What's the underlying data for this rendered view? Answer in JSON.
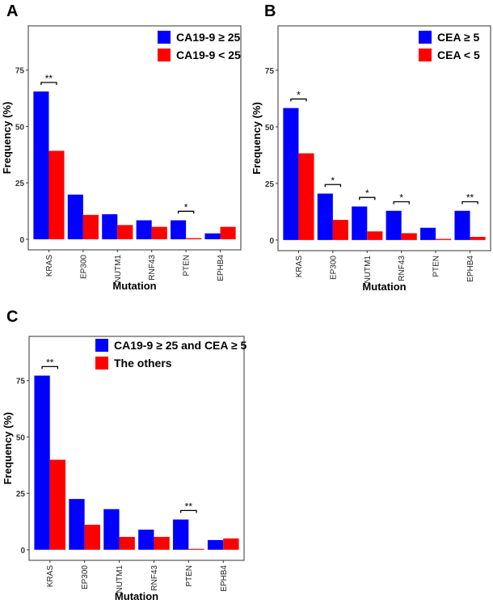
{
  "chart_data": [
    {
      "panel_label": "A",
      "type": "bar",
      "xlabel": "Mutation",
      "ylabel": "Frequency (%)",
      "ylim": [
        -4.7,
        94.6
      ],
      "yticks": [
        0,
        25,
        50,
        75
      ],
      "grid": false,
      "legend_position": "top-right",
      "categories": [
        "KRAS",
        "EP300",
        "NUTM1",
        "RNF43",
        "PTEN",
        "EPHB4"
      ],
      "series": [
        {
          "name": "CA19-9 ≥ 25",
          "color": "#0000FF",
          "values": [
            65.5,
            19.8,
            11.1,
            8.4,
            8.4,
            2.6
          ]
        },
        {
          "name": "CA19-9 < 25",
          "color": "#FF0000",
          "values": [
            39.2,
            10.8,
            6.3,
            5.5,
            0.5,
            5.5
          ]
        }
      ],
      "significance": [
        {
          "category": "KRAS",
          "label": "**"
        },
        {
          "category": "PTEN",
          "label": "*"
        }
      ]
    },
    {
      "panel_label": "B",
      "type": "bar",
      "xlabel": "Mutation",
      "ylabel": "Frequency (%)",
      "ylim": [
        -4.7,
        94.6
      ],
      "yticks": [
        0,
        25,
        50,
        75
      ],
      "grid": false,
      "legend_position": "top-right",
      "categories": [
        "KRAS",
        "EP300",
        "NUTM1",
        "RNF43",
        "PTEN",
        "EPHB4"
      ],
      "series": [
        {
          "name": "CEA ≥ 5",
          "color": "#0000FF",
          "values": [
            58.3,
            20.5,
            14.8,
            12.9,
            5.4,
            12.9
          ]
        },
        {
          "name": "CEA < 5",
          "color": "#FF0000",
          "values": [
            38.3,
            8.9,
            3.8,
            3.0,
            0.5,
            1.4
          ]
        }
      ],
      "significance": [
        {
          "category": "KRAS",
          "label": "*"
        },
        {
          "category": "EP300",
          "label": "*"
        },
        {
          "category": "NUTM1",
          "label": "*"
        },
        {
          "category": "RNF43",
          "label": "*"
        },
        {
          "category": "EPHB4",
          "label": "**"
        }
      ]
    },
    {
      "panel_label": "C",
      "type": "bar",
      "xlabel": "Mutation",
      "ylabel": "Frequency (%)",
      "ylim": [
        -4.7,
        94.6
      ],
      "yticks": [
        0,
        25,
        50,
        75
      ],
      "grid": false,
      "legend_position": "top-right",
      "categories": [
        "KRAS",
        "EP300",
        "NUTM1",
        "RNF43",
        "PTEN",
        "EPHB4"
      ],
      "series": [
        {
          "name": "CA19-9 ≥ 25 and CEA ≥ 5",
          "color": "#0000FF",
          "values": [
            77.2,
            22.5,
            18.0,
            8.9,
            13.4,
            4.3
          ]
        },
        {
          "name": "The others",
          "color": "#FF0000",
          "values": [
            39.9,
            11.1,
            5.7,
            5.7,
            0.4,
            5.0
          ]
        }
      ],
      "significance": [
        {
          "category": "KRAS",
          "label": "**"
        },
        {
          "category": "PTEN",
          "label": "**"
        }
      ]
    }
  ]
}
